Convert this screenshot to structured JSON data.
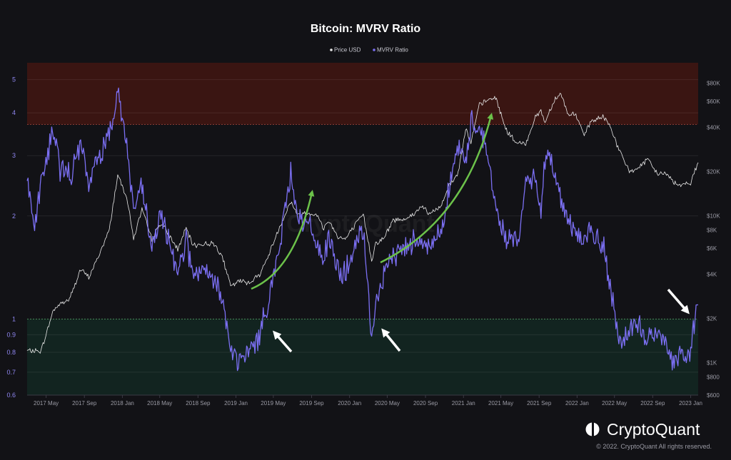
{
  "chart_data": {
    "type": "line",
    "title": "Bitcoin: MVRV Ratio",
    "legend": {
      "position": "top-center",
      "items": [
        "Price USD",
        "MVRV Ratio"
      ]
    },
    "x_range": [
      "2017-03-01",
      "2023-01-25"
    ],
    "x_ticks": [
      "2017 May",
      "2017 Sep",
      "2018 Jan",
      "2018 May",
      "2018 Sep",
      "2019 Jan",
      "2019 May",
      "2019 Sep",
      "2020 Jan",
      "2020 May",
      "2020 Sep",
      "2021 Jan",
      "2021 May",
      "2021 Sep",
      "2022 Jan",
      "2022 May",
      "2022 Sep",
      "2023 Jan"
    ],
    "y_left": {
      "scale": "log",
      "range": [
        0.6,
        5.6
      ],
      "ticks": [
        "0.6",
        "0.7",
        "0.8",
        "0.9",
        "1",
        "2",
        "3",
        "4",
        "5"
      ]
    },
    "y_right": {
      "scale": "log",
      "range": [
        600,
        110000
      ],
      "ticks": [
        "$600",
        "$800",
        "$1K",
        "$2K",
        "$4K",
        "$6K",
        "$8K",
        "$10K",
        "$20K",
        "$40K",
        "$60K",
        "$80K"
      ]
    },
    "zones": [
      {
        "label": "overvalued",
        "from": 3.7,
        "to": 5.6,
        "color": "#3a1512"
      },
      {
        "label": "undervalued",
        "from": 0.6,
        "to": 1.0,
        "color": "#122420"
      }
    ],
    "series": [
      {
        "name": "Price USD",
        "axis": "right",
        "color": "#e8e8e8",
        "x": [
          "2017-03-01",
          "2017-04-15",
          "2017-05-25",
          "2017-06-15",
          "2017-07-15",
          "2017-08-20",
          "2017-09-15",
          "2017-10-20",
          "2017-11-20",
          "2017-12-17",
          "2018-01-15",
          "2018-02-06",
          "2018-03-05",
          "2018-04-06",
          "2018-05-05",
          "2018-06-28",
          "2018-07-25",
          "2018-08-15",
          "2018-09-20",
          "2018-10-20",
          "2018-11-15",
          "2018-12-15",
          "2019-01-15",
          "2019-02-10",
          "2019-03-15",
          "2019-04-10",
          "2019-05-15",
          "2019-06-26",
          "2019-07-20",
          "2019-08-15",
          "2019-09-15",
          "2019-10-10",
          "2019-10-26",
          "2019-11-25",
          "2019-12-18",
          "2020-01-15",
          "2020-02-14",
          "2020-03-12",
          "2020-03-25",
          "2020-04-20",
          "2020-05-20",
          "2020-06-20",
          "2020-07-27",
          "2020-08-20",
          "2020-09-10",
          "2020-10-20",
          "2020-11-15",
          "2020-12-15",
          "2021-01-08",
          "2021-01-25",
          "2021-02-21",
          "2021-03-13",
          "2021-04-14",
          "2021-05-19",
          "2021-06-22",
          "2021-07-20",
          "2021-08-20",
          "2021-09-07",
          "2021-09-20",
          "2021-10-20",
          "2021-11-10",
          "2021-12-04",
          "2021-12-25",
          "2022-01-24",
          "2022-02-15",
          "2022-03-28",
          "2022-04-20",
          "2022-05-12",
          "2022-06-18",
          "2022-07-15",
          "2022-08-15",
          "2022-09-15",
          "2022-10-15",
          "2022-11-09",
          "2022-11-21",
          "2022-12-15",
          "2023-01-01",
          "2023-01-15",
          "2023-01-25"
        ],
        "values": [
          1200,
          1200,
          2300,
          2500,
          2700,
          4300,
          3800,
          5500,
          8000,
          19000,
          13500,
          7000,
          11000,
          6900,
          9000,
          5900,
          8200,
          6300,
          6400,
          6500,
          5500,
          3300,
          3600,
          3500,
          3900,
          5000,
          7800,
          12500,
          10000,
          10500,
          10300,
          8200,
          9300,
          7200,
          6900,
          8400,
          10200,
          5000,
          6500,
          7000,
          9300,
          9500,
          10200,
          11800,
          10200,
          11500,
          16000,
          19500,
          40000,
          31000,
          57000,
          60000,
          64000,
          38000,
          31000,
          31000,
          47000,
          52000,
          43000,
          62000,
          68000,
          48000,
          50000,
          35000,
          44000,
          47000,
          40000,
          29000,
          20000,
          21000,
          24000,
          19500,
          19200,
          17000,
          16000,
          16800,
          16600,
          20500,
          23000
        ]
      },
      {
        "name": "MVRV Ratio",
        "axis": "left",
        "color": "#7b6ff2",
        "x": [
          "2017-03-01",
          "2017-03-25",
          "2017-04-15",
          "2017-05-25",
          "2017-06-12",
          "2017-07-15",
          "2017-08-20",
          "2017-09-15",
          "2017-10-20",
          "2017-11-20",
          "2017-12-17",
          "2018-01-15",
          "2018-02-06",
          "2018-03-05",
          "2018-04-06",
          "2018-05-05",
          "2018-06-28",
          "2018-07-25",
          "2018-08-15",
          "2018-09-20",
          "2018-10-20",
          "2018-11-15",
          "2018-12-15",
          "2019-01-15",
          "2019-02-10",
          "2019-03-15",
          "2019-04-10",
          "2019-05-15",
          "2019-06-26",
          "2019-07-20",
          "2019-08-15",
          "2019-09-15",
          "2019-10-10",
          "2019-10-26",
          "2019-11-25",
          "2019-12-18",
          "2020-01-15",
          "2020-02-14",
          "2020-03-12",
          "2020-03-25",
          "2020-04-20",
          "2020-05-20",
          "2020-06-20",
          "2020-07-27",
          "2020-08-20",
          "2020-09-10",
          "2020-10-20",
          "2020-11-15",
          "2020-12-15",
          "2021-01-08",
          "2021-01-25",
          "2021-02-21",
          "2021-03-13",
          "2021-04-14",
          "2021-05-19",
          "2021-06-22",
          "2021-07-20",
          "2021-08-20",
          "2021-09-07",
          "2021-09-20",
          "2021-10-20",
          "2021-11-10",
          "2021-12-04",
          "2021-12-25",
          "2022-01-24",
          "2022-02-15",
          "2022-03-28",
          "2022-04-20",
          "2022-05-12",
          "2022-06-18",
          "2022-07-15",
          "2022-08-15",
          "2022-09-15",
          "2022-10-15",
          "2022-11-09",
          "2022-11-21",
          "2022-12-15",
          "2023-01-01",
          "2023-01-15",
          "2023-01-25"
        ],
        "values": [
          2.6,
          1.85,
          2.5,
          3.6,
          2.8,
          2.6,
          3.2,
          2.5,
          3.0,
          3.5,
          4.7,
          3.2,
          2.1,
          2.4,
          1.6,
          2.0,
          1.4,
          1.7,
          1.35,
          1.35,
          1.3,
          1.2,
          0.8,
          0.75,
          0.8,
          0.88,
          1.1,
          1.5,
          2.7,
          2.0,
          1.9,
          1.7,
          1.5,
          1.7,
          1.4,
          1.35,
          1.6,
          1.8,
          0.86,
          1.15,
          1.3,
          1.55,
          1.6,
          1.7,
          1.75,
          1.6,
          1.8,
          2.4,
          3.2,
          2.8,
          3.8,
          3.6,
          3.3,
          2.1,
          1.7,
          1.7,
          2.4,
          2.6,
          2.1,
          2.9,
          2.8,
          2.2,
          2.0,
          1.8,
          1.7,
          1.8,
          1.6,
          1.2,
          0.87,
          0.9,
          0.97,
          0.88,
          0.9,
          0.85,
          0.75,
          0.78,
          0.78,
          0.8,
          1.0,
          1.1
        ]
      }
    ],
    "annotations": {
      "green_arrows": [
        "2019 rally",
        "2020-2021 rally"
      ],
      "white_arrows": [
        "2019-03 bottom",
        "2020-03 bottom",
        "2023-01 breakout"
      ]
    },
    "watermark": "CryptoQuant"
  },
  "branding": {
    "name": "CryptoQuant",
    "copyright": "© 2022. CryptoQuant All rights reserved."
  }
}
